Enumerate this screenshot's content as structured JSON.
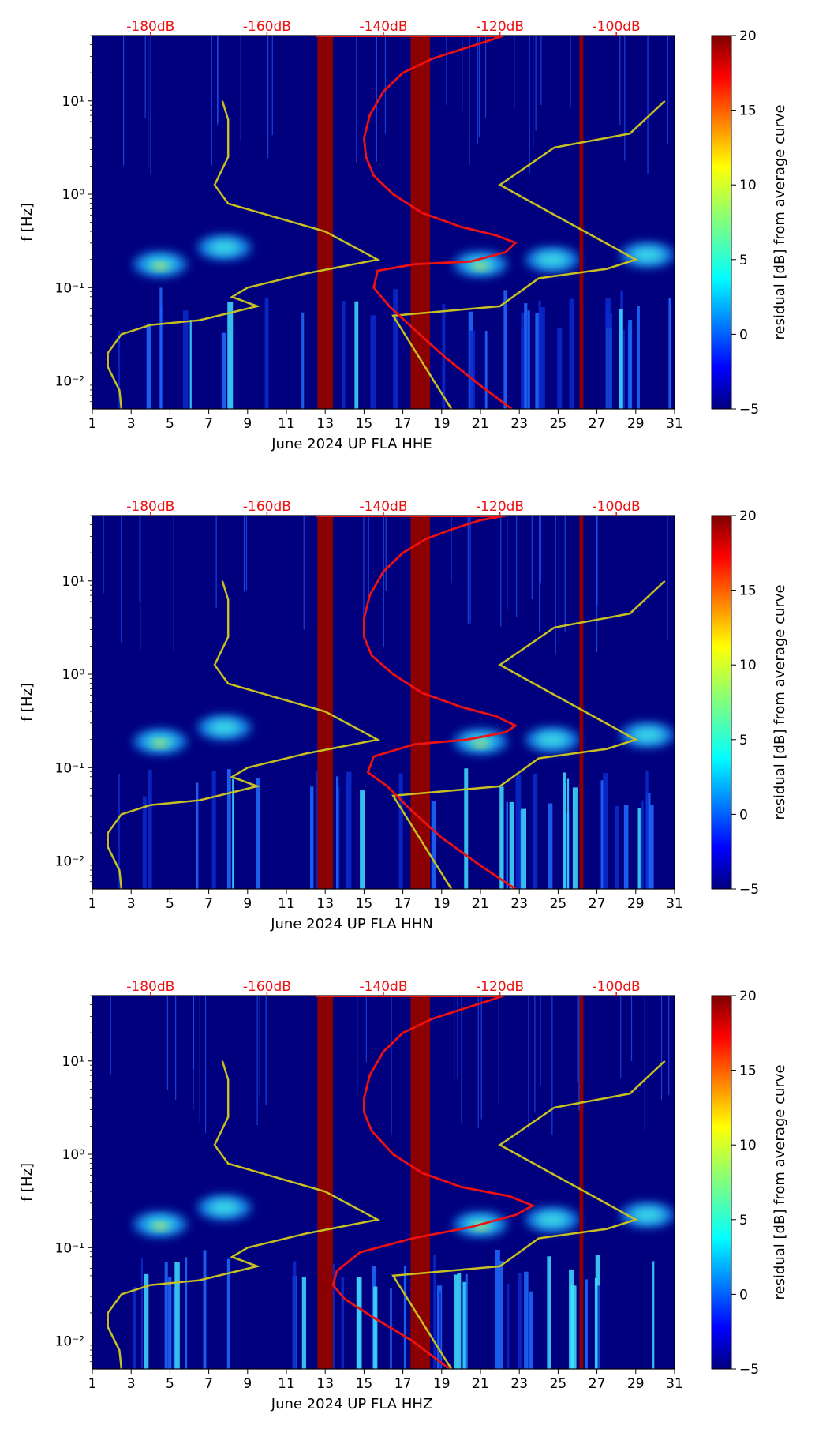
{
  "chart_data": [
    {
      "type": "heatmap",
      "xlabel": "June 2024 UP FLA  HHE",
      "ylabel": "f [Hz]",
      "x_ticks": [
        "1",
        "3",
        "5",
        "7",
        "9",
        "11",
        "13",
        "15",
        "17",
        "19",
        "21",
        "23",
        "25",
        "27",
        "29",
        "31"
      ],
      "y_ticks": [
        "10⁻²",
        "10⁻¹",
        "10⁰",
        "10¹"
      ],
      "xlim": [
        1,
        31
      ],
      "ylim_log10": [
        -2.3,
        1.7
      ],
      "top_labels": [
        "-180dB",
        "-160dB",
        "-140dB",
        "-120dB",
        "-100dB"
      ],
      "gaps": [
        [
          12.6,
          13.4
        ],
        [
          17.4,
          18.4
        ],
        [
          26.1,
          26.3
        ]
      ],
      "colorbar": {
        "label": "residual [dB] from average curve",
        "min": -5,
        "max": 20,
        "ticks": [
          "−5",
          "0",
          "5",
          "10",
          "15",
          "20"
        ]
      },
      "curve_colors": {
        "average": "#ee1111",
        "models": "#c8c020",
        "gap": "#8b0000"
      },
      "average_curve": [
        [
          22.6,
          -2.3
        ],
        [
          21.0,
          -2.05
        ],
        [
          19.2,
          -1.75
        ],
        [
          17.6,
          -1.45
        ],
        [
          16.3,
          -1.2
        ],
        [
          15.5,
          -1.0
        ],
        [
          15.7,
          -0.82
        ],
        [
          17.6,
          -0.75
        ],
        [
          20.5,
          -0.72
        ],
        [
          22.3,
          -0.62
        ],
        [
          22.8,
          -0.52
        ],
        [
          21.8,
          -0.44
        ],
        [
          20.0,
          -0.35
        ],
        [
          18.0,
          -0.2
        ],
        [
          16.5,
          0.0
        ],
        [
          15.5,
          0.2
        ],
        [
          15.1,
          0.4
        ],
        [
          15.0,
          0.6
        ],
        [
          15.3,
          0.85
        ],
        [
          16.0,
          1.1
        ],
        [
          17.0,
          1.3
        ],
        [
          18.5,
          1.45
        ],
        [
          20.0,
          1.55
        ],
        [
          21.5,
          1.65
        ],
        [
          22.2,
          1.7
        ]
      ],
      "model_low": [
        [
          2.5,
          -2.3
        ],
        [
          2.4,
          -2.1
        ],
        [
          1.8,
          -1.85
        ],
        [
          1.8,
          -1.7
        ],
        [
          2.5,
          -1.5
        ],
        [
          4.0,
          -1.4
        ],
        [
          6.5,
          -1.35
        ],
        [
          9.5,
          -1.2
        ],
        [
          8.2,
          -1.1
        ],
        [
          9.0,
          -1.0
        ],
        [
          12.0,
          -0.85
        ],
        [
          15.7,
          -0.7
        ],
        [
          13.0,
          -0.4
        ],
        [
          8.0,
          -0.1
        ],
        [
          7.3,
          0.1
        ],
        [
          8.0,
          0.4
        ],
        [
          8.0,
          0.8
        ],
        [
          7.7,
          1.0
        ]
      ],
      "model_high": [
        [
          19.5,
          -2.3
        ],
        [
          16.5,
          -1.3
        ],
        [
          22.0,
          -1.2
        ],
        [
          24.0,
          -0.9
        ],
        [
          27.5,
          -0.8
        ],
        [
          29.0,
          -0.7
        ],
        [
          22.0,
          0.1
        ],
        [
          24.8,
          0.5
        ],
        [
          28.7,
          0.65
        ],
        [
          30.5,
          1.0
        ]
      ],
      "hot_spots": [
        [
          4.5,
          -0.75
        ],
        [
          21.0,
          -0.75
        ],
        [
          29.6,
          -0.65
        ],
        [
          24.7,
          -0.7
        ],
        [
          7.8,
          -0.57
        ]
      ]
    },
    {
      "type": "heatmap",
      "xlabel": "June 2024 UP FLA  HHN",
      "ylabel": "f [Hz]",
      "x_ticks": [
        "1",
        "3",
        "5",
        "7",
        "9",
        "11",
        "13",
        "15",
        "17",
        "19",
        "21",
        "23",
        "25",
        "27",
        "29",
        "31"
      ],
      "y_ticks": [
        "10⁻²",
        "10⁻¹",
        "10⁰",
        "10¹"
      ],
      "xlim": [
        1,
        31
      ],
      "ylim_log10": [
        -2.3,
        1.7
      ],
      "top_labels": [
        "-180dB",
        "-160dB",
        "-140dB",
        "-120dB",
        "-100dB"
      ],
      "gaps": [
        [
          12.6,
          13.4
        ],
        [
          17.4,
          18.4
        ],
        [
          26.1,
          26.3
        ]
      ],
      "colorbar": {
        "label": "residual [dB] from average curve",
        "min": -5,
        "max": 20,
        "ticks": [
          "−5",
          "0",
          "5",
          "10",
          "15",
          "20"
        ]
      },
      "curve_colors": {
        "average": "#ee1111",
        "models": "#c8c020",
        "gap": "#8b0000"
      },
      "average_curve": [
        [
          22.8,
          -2.3
        ],
        [
          21.0,
          -2.05
        ],
        [
          19.0,
          -1.75
        ],
        [
          17.4,
          -1.45
        ],
        [
          16.2,
          -1.2
        ],
        [
          15.2,
          -1.05
        ],
        [
          15.5,
          -0.88
        ],
        [
          17.6,
          -0.75
        ],
        [
          20.3,
          -0.7
        ],
        [
          22.3,
          -0.62
        ],
        [
          22.8,
          -0.55
        ],
        [
          21.8,
          -0.45
        ],
        [
          20.0,
          -0.35
        ],
        [
          18.0,
          -0.2
        ],
        [
          16.5,
          0.0
        ],
        [
          15.4,
          0.2
        ],
        [
          15.0,
          0.4
        ],
        [
          15.0,
          0.6
        ],
        [
          15.3,
          0.85
        ],
        [
          16.0,
          1.1
        ],
        [
          17.0,
          1.3
        ],
        [
          18.2,
          1.45
        ],
        [
          19.5,
          1.55
        ],
        [
          21.0,
          1.65
        ],
        [
          22.3,
          1.7
        ]
      ],
      "model_low": [
        [
          2.5,
          -2.3
        ],
        [
          2.4,
          -2.1
        ],
        [
          1.8,
          -1.85
        ],
        [
          1.8,
          -1.7
        ],
        [
          2.5,
          -1.5
        ],
        [
          4.0,
          -1.4
        ],
        [
          6.5,
          -1.35
        ],
        [
          9.5,
          -1.2
        ],
        [
          8.2,
          -1.1
        ],
        [
          9.0,
          -1.0
        ],
        [
          12.0,
          -0.85
        ],
        [
          15.7,
          -0.7
        ],
        [
          13.0,
          -0.4
        ],
        [
          8.0,
          -0.1
        ],
        [
          7.3,
          0.1
        ],
        [
          8.0,
          0.4
        ],
        [
          8.0,
          0.8
        ],
        [
          7.7,
          1.0
        ]
      ],
      "model_high": [
        [
          19.5,
          -2.3
        ],
        [
          16.5,
          -1.3
        ],
        [
          22.0,
          -1.2
        ],
        [
          24.0,
          -0.9
        ],
        [
          27.5,
          -0.8
        ],
        [
          29.0,
          -0.7
        ],
        [
          22.0,
          0.1
        ],
        [
          24.8,
          0.5
        ],
        [
          28.7,
          0.65
        ],
        [
          30.5,
          1.0
        ]
      ],
      "hot_spots": [
        [
          4.5,
          -0.72
        ],
        [
          21.0,
          -0.72
        ],
        [
          29.6,
          -0.65
        ],
        [
          24.7,
          -0.7
        ],
        [
          7.8,
          -0.57
        ]
      ]
    },
    {
      "type": "heatmap",
      "xlabel": "June 2024 UP FLA  HHZ",
      "ylabel": "f [Hz]",
      "x_ticks": [
        "1",
        "3",
        "5",
        "7",
        "9",
        "11",
        "13",
        "15",
        "17",
        "19",
        "21",
        "23",
        "25",
        "27",
        "29",
        "31"
      ],
      "y_ticks": [
        "10⁻²",
        "10⁻¹",
        "10⁰",
        "10¹"
      ],
      "xlim": [
        1,
        31
      ],
      "ylim_log10": [
        -2.3,
        1.7
      ],
      "top_labels": [
        "-180dB",
        "-160dB",
        "-140dB",
        "-120dB",
        "-100dB"
      ],
      "gaps": [
        [
          12.6,
          13.4
        ],
        [
          17.4,
          18.4
        ],
        [
          26.1,
          26.3
        ]
      ],
      "colorbar": {
        "label": "residual [dB] from average curve",
        "min": -5,
        "max": 20,
        "ticks": [
          "−5",
          "0",
          "5",
          "10",
          "15",
          "20"
        ]
      },
      "curve_colors": {
        "average": "#ee1111",
        "models": "#c8c020",
        "gap": "#8b0000"
      },
      "average_curve": [
        [
          19.4,
          -2.3
        ],
        [
          17.5,
          -2.0
        ],
        [
          15.5,
          -1.75
        ],
        [
          14.0,
          -1.55
        ],
        [
          13.4,
          -1.4
        ],
        [
          13.6,
          -1.25
        ],
        [
          14.8,
          -1.05
        ],
        [
          17.5,
          -0.9
        ],
        [
          20.5,
          -0.78
        ],
        [
          22.8,
          -0.65
        ],
        [
          23.7,
          -0.55
        ],
        [
          22.5,
          -0.45
        ],
        [
          20.0,
          -0.35
        ],
        [
          18.0,
          -0.2
        ],
        [
          16.5,
          0.0
        ],
        [
          15.4,
          0.25
        ],
        [
          15.0,
          0.45
        ],
        [
          15.0,
          0.6
        ],
        [
          15.3,
          0.85
        ],
        [
          16.0,
          1.1
        ],
        [
          17.0,
          1.3
        ],
        [
          18.5,
          1.45
        ],
        [
          20.0,
          1.55
        ],
        [
          21.5,
          1.65
        ],
        [
          22.2,
          1.7
        ]
      ],
      "model_low": [
        [
          2.5,
          -2.3
        ],
        [
          2.4,
          -2.1
        ],
        [
          1.8,
          -1.85
        ],
        [
          1.8,
          -1.7
        ],
        [
          2.5,
          -1.5
        ],
        [
          4.0,
          -1.4
        ],
        [
          6.5,
          -1.35
        ],
        [
          9.5,
          -1.2
        ],
        [
          8.2,
          -1.1
        ],
        [
          9.0,
          -1.0
        ],
        [
          12.0,
          -0.85
        ],
        [
          15.7,
          -0.7
        ],
        [
          13.0,
          -0.4
        ],
        [
          8.0,
          -0.1
        ],
        [
          7.3,
          0.1
        ],
        [
          8.0,
          0.4
        ],
        [
          8.0,
          0.8
        ],
        [
          7.7,
          1.0
        ]
      ],
      "model_high": [
        [
          19.5,
          -2.3
        ],
        [
          16.5,
          -1.3
        ],
        [
          22.0,
          -1.2
        ],
        [
          24.0,
          -0.9
        ],
        [
          27.5,
          -0.8
        ],
        [
          29.0,
          -0.7
        ],
        [
          22.0,
          0.1
        ],
        [
          24.8,
          0.5
        ],
        [
          28.7,
          0.65
        ],
        [
          30.5,
          1.0
        ]
      ],
      "hot_spots": [
        [
          4.5,
          -0.75
        ],
        [
          21.0,
          -0.75
        ],
        [
          29.6,
          -0.65
        ],
        [
          24.7,
          -0.7
        ],
        [
          7.8,
          -0.57
        ]
      ]
    }
  ]
}
